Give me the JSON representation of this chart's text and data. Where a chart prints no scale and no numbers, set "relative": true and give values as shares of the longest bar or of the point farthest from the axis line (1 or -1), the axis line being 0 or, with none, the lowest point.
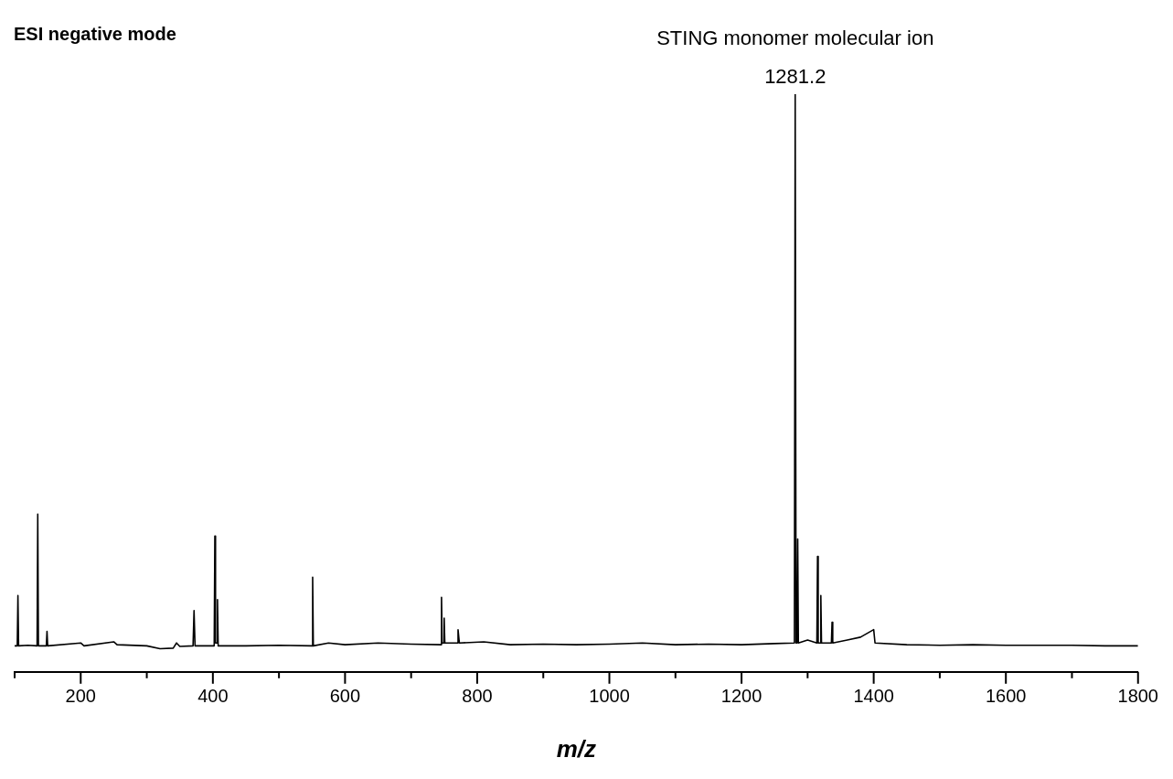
{
  "chart_data": {
    "type": "line",
    "relative": true,
    "title": "ESI negative mode",
    "xlabel": "m/z",
    "annotations": [
      {
        "text": "STING monomer molecular ion",
        "x": 1281.2,
        "y": 1
      },
      {
        "text": "1281.2",
        "x": 1281.2,
        "y": 1
      }
    ],
    "xlim": [
      100,
      1800
    ],
    "xticks": [
      {
        "value": 100,
        "label": null
      },
      200,
      {
        "value": 300,
        "label": null
      },
      400,
      {
        "value": 500,
        "label": null
      },
      600,
      {
        "value": 700,
        "label": null
      },
      800,
      {
        "value": 900,
        "label": null
      },
      1000,
      {
        "value": 1100,
        "label": null
      },
      1200,
      {
        "value": 1300,
        "label": null
      },
      1400,
      {
        "value": 1500,
        "label": null
      },
      1600,
      {
        "value": 1700,
        "label": null
      },
      1800
    ],
    "series": [
      {
        "color": "#000000",
        "x": [
          100,
          104,
          105,
          106,
          120,
          134,
          135,
          136,
          148,
          149,
          150,
          200,
          205,
          250,
          255,
          300,
          320,
          340,
          345,
          350,
          370,
          371.5,
          373,
          402,
          403,
          404,
          406,
          407,
          408,
          450,
          500,
          550,
          551,
          552,
          575,
          600,
          650,
          700,
          745,
          746,
          747,
          749,
          750,
          751,
          770,
          771,
          773,
          810,
          850,
          900,
          950,
          1000,
          1050,
          1100,
          1150,
          1200,
          1250,
          1280,
          1281.2,
          1282.5,
          1284,
          1285,
          1286,
          1300,
          1314,
          1315,
          1316,
          1319,
          1320,
          1321,
          1336,
          1337,
          1338,
          1360,
          1380,
          1400,
          1402,
          1450,
          1500,
          1550,
          1600,
          1650,
          1700,
          1750,
          1800
        ],
        "values": [
          0.045,
          0.045,
          0.132,
          0.045,
          0.046,
          0.045,
          0.273,
          0.045,
          0.045,
          0.07,
          0.045,
          0.05,
          0.045,
          0.052,
          0.047,
          0.045,
          0.04,
          0.041,
          0.05,
          0.044,
          0.045,
          0.106,
          0.045,
          0.045,
          0.235,
          0.05,
          0.05,
          0.125,
          0.045,
          0.045,
          0.046,
          0.045,
          0.164,
          0.045,
          0.05,
          0.047,
          0.05,
          0.048,
          0.047,
          0.129,
          0.05,
          0.05,
          0.093,
          0.05,
          0.05,
          0.073,
          0.05,
          0.052,
          0.047,
          0.048,
          0.047,
          0.048,
          0.05,
          0.047,
          0.048,
          0.047,
          0.049,
          0.05,
          1,
          0.05,
          0.05,
          0.23,
          0.05,
          0.055,
          0.05,
          0.2,
          0.05,
          0.05,
          0.132,
          0.05,
          0.05,
          0.086,
          0.05,
          0.055,
          0.06,
          0.073,
          0.05,
          0.047,
          0.046,
          0.047,
          0.046,
          0.046,
          0.046,
          0.045,
          0.045
        ]
      }
    ]
  }
}
